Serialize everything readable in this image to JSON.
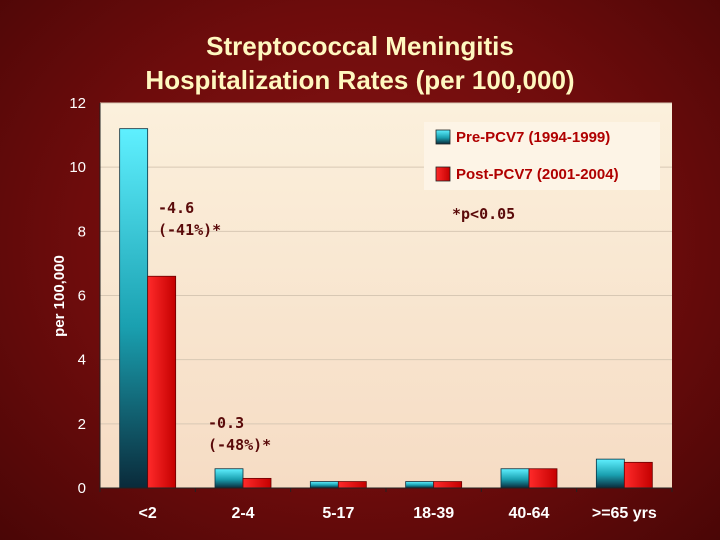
{
  "chart_data": {
    "type": "bar",
    "title_line1": "Streptococcal Meningitis",
    "title_line2": "Hospitalization Rates (per 100,000)",
    "ylabel": "per 100,000",
    "xlabel": "",
    "ylim": [
      0,
      12
    ],
    "yticks": [
      "0",
      "2",
      "4",
      "6",
      "8",
      "10",
      "12"
    ],
    "categories": [
      "<2",
      "2-4",
      "5-17",
      "18-39",
      "40-64",
      ">=65 yrs"
    ],
    "series": [
      {
        "name": "Pre-PCV7 (1994-1999)",
        "values": [
          11.2,
          0.6,
          0.2,
          0.2,
          0.6,
          0.9
        ]
      },
      {
        "name": "Post-PCV7 (2001-2004)",
        "values": [
          6.6,
          0.3,
          0.2,
          0.2,
          0.6,
          0.8
        ]
      }
    ],
    "annotations": [
      {
        "line1": "-4.6",
        "line2": "(-41%)*"
      },
      {
        "line1": "-0.3",
        "line2": "(-48%)*"
      },
      {
        "line1": "*p<0.05"
      }
    ],
    "legend_position": "top-right",
    "grid": true,
    "colors": {
      "pre_light": "#5ff0ff",
      "pre_dark": "#0a2a3a",
      "post": "#e00000",
      "title": "#fff8c0"
    }
  }
}
